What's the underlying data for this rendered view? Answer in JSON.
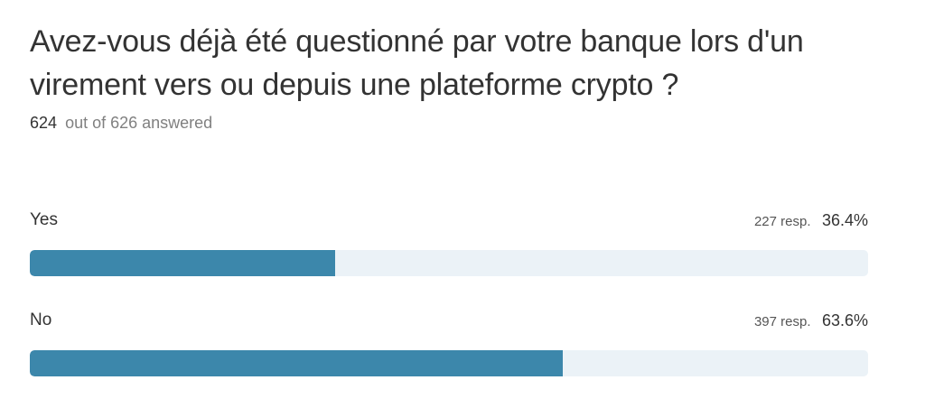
{
  "question": "Avez-vous déjà été questionné par votre banque lors d'un virement vers ou depuis une plateforme crypto ?",
  "answered": {
    "count": "624",
    "of_label": "out of 626 answered"
  },
  "colors": {
    "bar_fill": "#3c87ab",
    "bar_track": "#ebf2f7"
  },
  "chart_data": {
    "type": "bar",
    "title": "Avez-vous déjà été questionné par votre banque lors d'un virement vers ou depuis une plateforme crypto ?",
    "categories": [
      "Yes",
      "No"
    ],
    "values": [
      36.4,
      63.6
    ],
    "responses": [
      227,
      397
    ],
    "value_unit": "percent",
    "xlim": [
      0,
      100
    ],
    "options": [
      {
        "label": "Yes",
        "responses": "227 resp.",
        "percent": "36.4%",
        "value": 36.4
      },
      {
        "label": "No",
        "responses": "397 resp.",
        "percent": "63.6%",
        "value": 63.6
      }
    ]
  }
}
